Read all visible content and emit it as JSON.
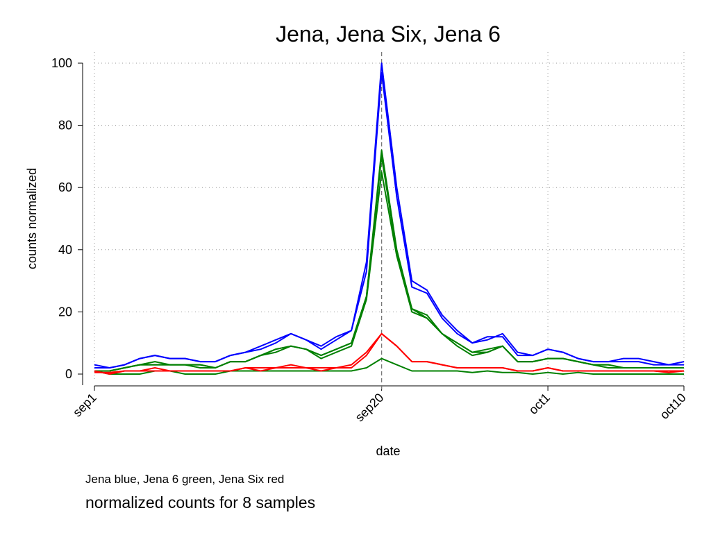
{
  "chart_data": {
    "type": "line",
    "title": "Jena, Jena Six, Jena 6",
    "xlabel": "date",
    "ylabel": "counts normalized",
    "x_start_label": "sep1",
    "x_ticks": [
      {
        "day": 0,
        "label": "sep1"
      },
      {
        "day": 19,
        "label": "sep20"
      },
      {
        "day": 30,
        "label": "oct1"
      },
      {
        "day": 39,
        "label": "oct10"
      }
    ],
    "xlim": [
      0,
      39
    ],
    "ylim": [
      0,
      100
    ],
    "y_ticks": [
      0,
      20,
      40,
      60,
      80,
      100
    ],
    "grid": true,
    "reference_line_day": 19,
    "colors": {
      "Jena": "#0000ff",
      "Jena 6": "#008000",
      "Jena Six": "#ff0000",
      "reference": "#777777"
    },
    "series": [
      {
        "group": "Jena",
        "color": "#0000ff",
        "values": [
          3,
          2,
          3,
          5,
          6,
          5,
          5,
          4,
          4,
          6,
          7,
          9,
          11,
          13,
          11,
          9,
          12,
          14,
          36,
          100,
          60,
          30,
          27,
          19,
          14,
          10,
          11,
          13,
          7,
          6,
          8,
          7,
          5,
          4,
          4,
          4,
          4,
          3,
          3,
          4
        ]
      },
      {
        "group": "Jena",
        "color": "#0000ff",
        "values": [
          2,
          2,
          3,
          5,
          6,
          5,
          5,
          4,
          4,
          6,
          7,
          8,
          10,
          13,
          11,
          8,
          11,
          14,
          33,
          97,
          57,
          28,
          26,
          18,
          13,
          10,
          12,
          12,
          6,
          6,
          8,
          7,
          5,
          4,
          4,
          5,
          5,
          4,
          3,
          3
        ]
      },
      {
        "group": "Jena 6",
        "color": "#008000",
        "values": [
          1,
          1,
          2,
          3,
          4,
          3,
          3,
          3,
          2,
          4,
          4,
          6,
          8,
          9,
          8,
          6,
          8,
          10,
          25,
          72,
          40,
          21,
          19,
          13,
          10,
          7,
          8,
          9,
          4,
          4,
          5,
          5,
          4,
          3,
          3,
          2,
          2,
          2,
          2,
          2
        ]
      },
      {
        "group": "Jena 6",
        "color": "#008000",
        "values": [
          1,
          1,
          2,
          3,
          3,
          3,
          3,
          3,
          2,
          4,
          4,
          6,
          7,
          9,
          8,
          5,
          7,
          9,
          24,
          65,
          38,
          20,
          18,
          13,
          9,
          6,
          7,
          9,
          4,
          4,
          5,
          5,
          4,
          3,
          2,
          2,
          2,
          2,
          2,
          2
        ]
      },
      {
        "group": "Jena 6",
        "color": "#008000",
        "values": [
          1,
          1,
          2,
          3,
          3,
          3,
          3,
          2,
          2,
          4,
          4,
          6,
          8,
          9,
          8,
          6,
          8,
          10,
          25,
          70,
          39,
          21,
          18,
          13,
          10,
          7,
          7,
          9,
          4,
          4,
          5,
          5,
          4,
          3,
          3,
          2,
          2,
          2,
          2,
          2
        ]
      },
      {
        "group": "Jena 6",
        "color": "#008000",
        "values": [
          1,
          0,
          0,
          0,
          1,
          1,
          0,
          0,
          0,
          1,
          1,
          1,
          1,
          1,
          1,
          1,
          1,
          1,
          2,
          5,
          3,
          1,
          1,
          1,
          1,
          0.5,
          1,
          0.5,
          0.5,
          0,
          0.5,
          0,
          0.5,
          0,
          0,
          0,
          0,
          0,
          0,
          0
        ]
      },
      {
        "group": "Jena Six",
        "color": "#ff0000",
        "values": [
          1,
          0,
          1,
          1,
          2,
          1,
          1,
          1,
          1,
          1,
          2,
          1,
          2,
          3,
          2,
          1,
          2,
          3,
          7,
          13,
          9,
          4,
          4,
          3,
          2,
          2,
          2,
          2,
          1,
          1,
          2,
          1,
          1,
          1,
          1,
          1,
          1,
          1,
          1,
          1
        ]
      },
      {
        "group": "Jena Six",
        "color": "#ff0000",
        "values": [
          0.5,
          0.5,
          1,
          1,
          1,
          1,
          1,
          1,
          1,
          1,
          2,
          2,
          2,
          2,
          2,
          2,
          2,
          2,
          6,
          13,
          9,
          4,
          4,
          3,
          2,
          2,
          2,
          2,
          1,
          1,
          2,
          1,
          1,
          1,
          1,
          1,
          1,
          1,
          0.5,
          1
        ]
      }
    ]
  },
  "notes": {
    "line1": "Jena blue, Jena 6 green, Jena Six red",
    "line2": "normalized counts for 8 samples"
  }
}
